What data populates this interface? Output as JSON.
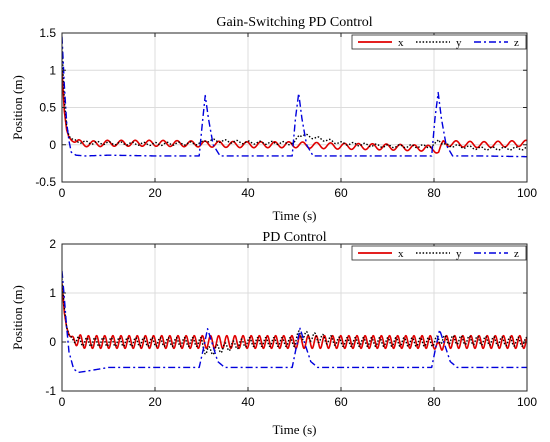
{
  "chart_data": [
    {
      "type": "line",
      "title": "Gain-Switching PD Control",
      "xlabel": "Time (s)",
      "ylabel": "Position (m)",
      "xlim": [
        0,
        100
      ],
      "ylim": [
        -0.5,
        1.5
      ],
      "xticks": [
        0,
        20,
        40,
        60,
        80,
        100
      ],
      "yticks": [
        -0.5,
        0,
        0.5,
        1,
        1.5
      ],
      "xticklabels": [
        "0",
        "20",
        "40",
        "60",
        "80",
        "100"
      ],
      "yticklabels": [
        "-0.5",
        "0",
        "0.5",
        "1",
        "1.5"
      ],
      "grid": true,
      "legend_position": "top-right",
      "series": [
        {
          "name": "x",
          "color": "#e00000",
          "style": "solid",
          "x": [
            0,
            0.5,
            1,
            1.5,
            2,
            3,
            4,
            6,
            10,
            20,
            30,
            40,
            50,
            60,
            70,
            80,
            81,
            82,
            90,
            100
          ],
          "y": [
            1.0,
            0.45,
            0.2,
            0.1,
            0.07,
            0.04,
            0.02,
            0.01,
            0.02,
            0.02,
            0.01,
            0.0,
            0.0,
            -0.02,
            -0.03,
            -0.05,
            -0.1,
            0.02,
            0.0,
            0.02
          ],
          "oscillation": {
            "amplitude": 0.04,
            "period_s": 3.0
          }
        },
        {
          "name": "y",
          "color": "#000000",
          "style": "dotted",
          "x": [
            0,
            0.5,
            1,
            1.5,
            2,
            3,
            5,
            10,
            20,
            30,
            31,
            40,
            50,
            51,
            60,
            70,
            80,
            81,
            82,
            90,
            100
          ],
          "y": [
            1.3,
            0.6,
            0.25,
            0.12,
            0.08,
            0.05,
            0.03,
            0.02,
            0.01,
            0.02,
            0.06,
            0.03,
            0.02,
            0.14,
            0.02,
            -0.02,
            -0.02,
            0.08,
            0.0,
            -0.05,
            -0.05
          ],
          "oscillation": {
            "amplitude": 0.02,
            "period_s": 2.5
          }
        },
        {
          "name": "z",
          "color": "#0000dd",
          "style": "dashdot",
          "x": [
            0,
            0.5,
            1,
            1.5,
            2,
            3,
            5,
            10,
            20,
            29.5,
            30.2,
            30.8,
            31.5,
            32.5,
            34,
            40,
            49.5,
            50.2,
            50.9,
            51.6,
            52.6,
            54,
            60,
            70,
            79.5,
            80.2,
            80.9,
            81.6,
            82.6,
            84,
            90,
            100
          ],
          "y": [
            1.45,
            0.8,
            0.3,
            0.05,
            -0.1,
            -0.14,
            -0.15,
            -0.14,
            -0.15,
            -0.15,
            0.3,
            0.66,
            0.35,
            0.0,
            -0.15,
            -0.15,
            -0.15,
            0.35,
            0.69,
            0.35,
            0.0,
            -0.15,
            -0.15,
            -0.15,
            -0.15,
            0.35,
            0.7,
            0.35,
            0.0,
            -0.15,
            -0.15,
            -0.16
          ]
        }
      ]
    },
    {
      "type": "line",
      "title": "PD Control",
      "xlabel": "Time (s)",
      "ylabel": "Position (m)",
      "xlim": [
        0,
        100
      ],
      "ylim": [
        -1,
        2
      ],
      "xticks": [
        0,
        20,
        40,
        60,
        80,
        100
      ],
      "yticks": [
        -1,
        0,
        1,
        2
      ],
      "xticklabels": [
        "0",
        "20",
        "40",
        "60",
        "80",
        "100"
      ],
      "yticklabels": [
        "-1",
        "0",
        "1",
        "2"
      ],
      "grid": true,
      "legend_position": "top-right",
      "series": [
        {
          "name": "x",
          "color": "#e00000",
          "style": "solid",
          "x": [
            0,
            0.5,
            1,
            1.5,
            2,
            3,
            5,
            20,
            40,
            60,
            80,
            81,
            82,
            100
          ],
          "y": [
            1.2,
            0.6,
            0.3,
            0.15,
            0.08,
            0.03,
            0.0,
            0.0,
            0.0,
            0.0,
            0.0,
            -0.15,
            0.0,
            0.0
          ],
          "oscillation": {
            "amplitude": 0.13,
            "period_s": 1.75
          }
        },
        {
          "name": "y",
          "color": "#000000",
          "style": "dotted",
          "x": [
            0,
            0.5,
            1,
            1.5,
            2,
            3,
            5,
            20,
            30,
            31,
            40,
            50,
            51,
            60,
            80,
            81,
            100
          ],
          "y": [
            1.3,
            0.7,
            0.3,
            0.15,
            0.08,
            0.03,
            0.0,
            0.0,
            0.0,
            -0.2,
            0.0,
            0.0,
            0.15,
            0.0,
            0.0,
            0.05,
            0.0
          ],
          "oscillation": {
            "amplitude": 0.09,
            "period_s": 1.75
          }
        },
        {
          "name": "z",
          "color": "#0000dd",
          "style": "dashdot",
          "x": [
            0,
            0.5,
            1,
            1.5,
            2.5,
            3.5,
            5,
            10,
            20,
            29.5,
            30.5,
            31.3,
            32.2,
            33.5,
            35,
            40,
            49.5,
            50.4,
            51.2,
            52.1,
            53.5,
            55,
            60,
            70,
            79.5,
            80.4,
            81.2,
            82.1,
            83.5,
            85,
            90,
            100
          ],
          "y": [
            1.45,
            0.9,
            0.3,
            -0.2,
            -0.55,
            -0.62,
            -0.6,
            -0.52,
            -0.52,
            -0.52,
            -0.1,
            0.27,
            0.0,
            -0.4,
            -0.52,
            -0.52,
            -0.52,
            -0.1,
            0.28,
            0.0,
            -0.4,
            -0.52,
            -0.52,
            -0.52,
            -0.52,
            -0.1,
            0.25,
            0.0,
            -0.4,
            -0.52,
            -0.52,
            -0.52
          ]
        }
      ]
    }
  ]
}
